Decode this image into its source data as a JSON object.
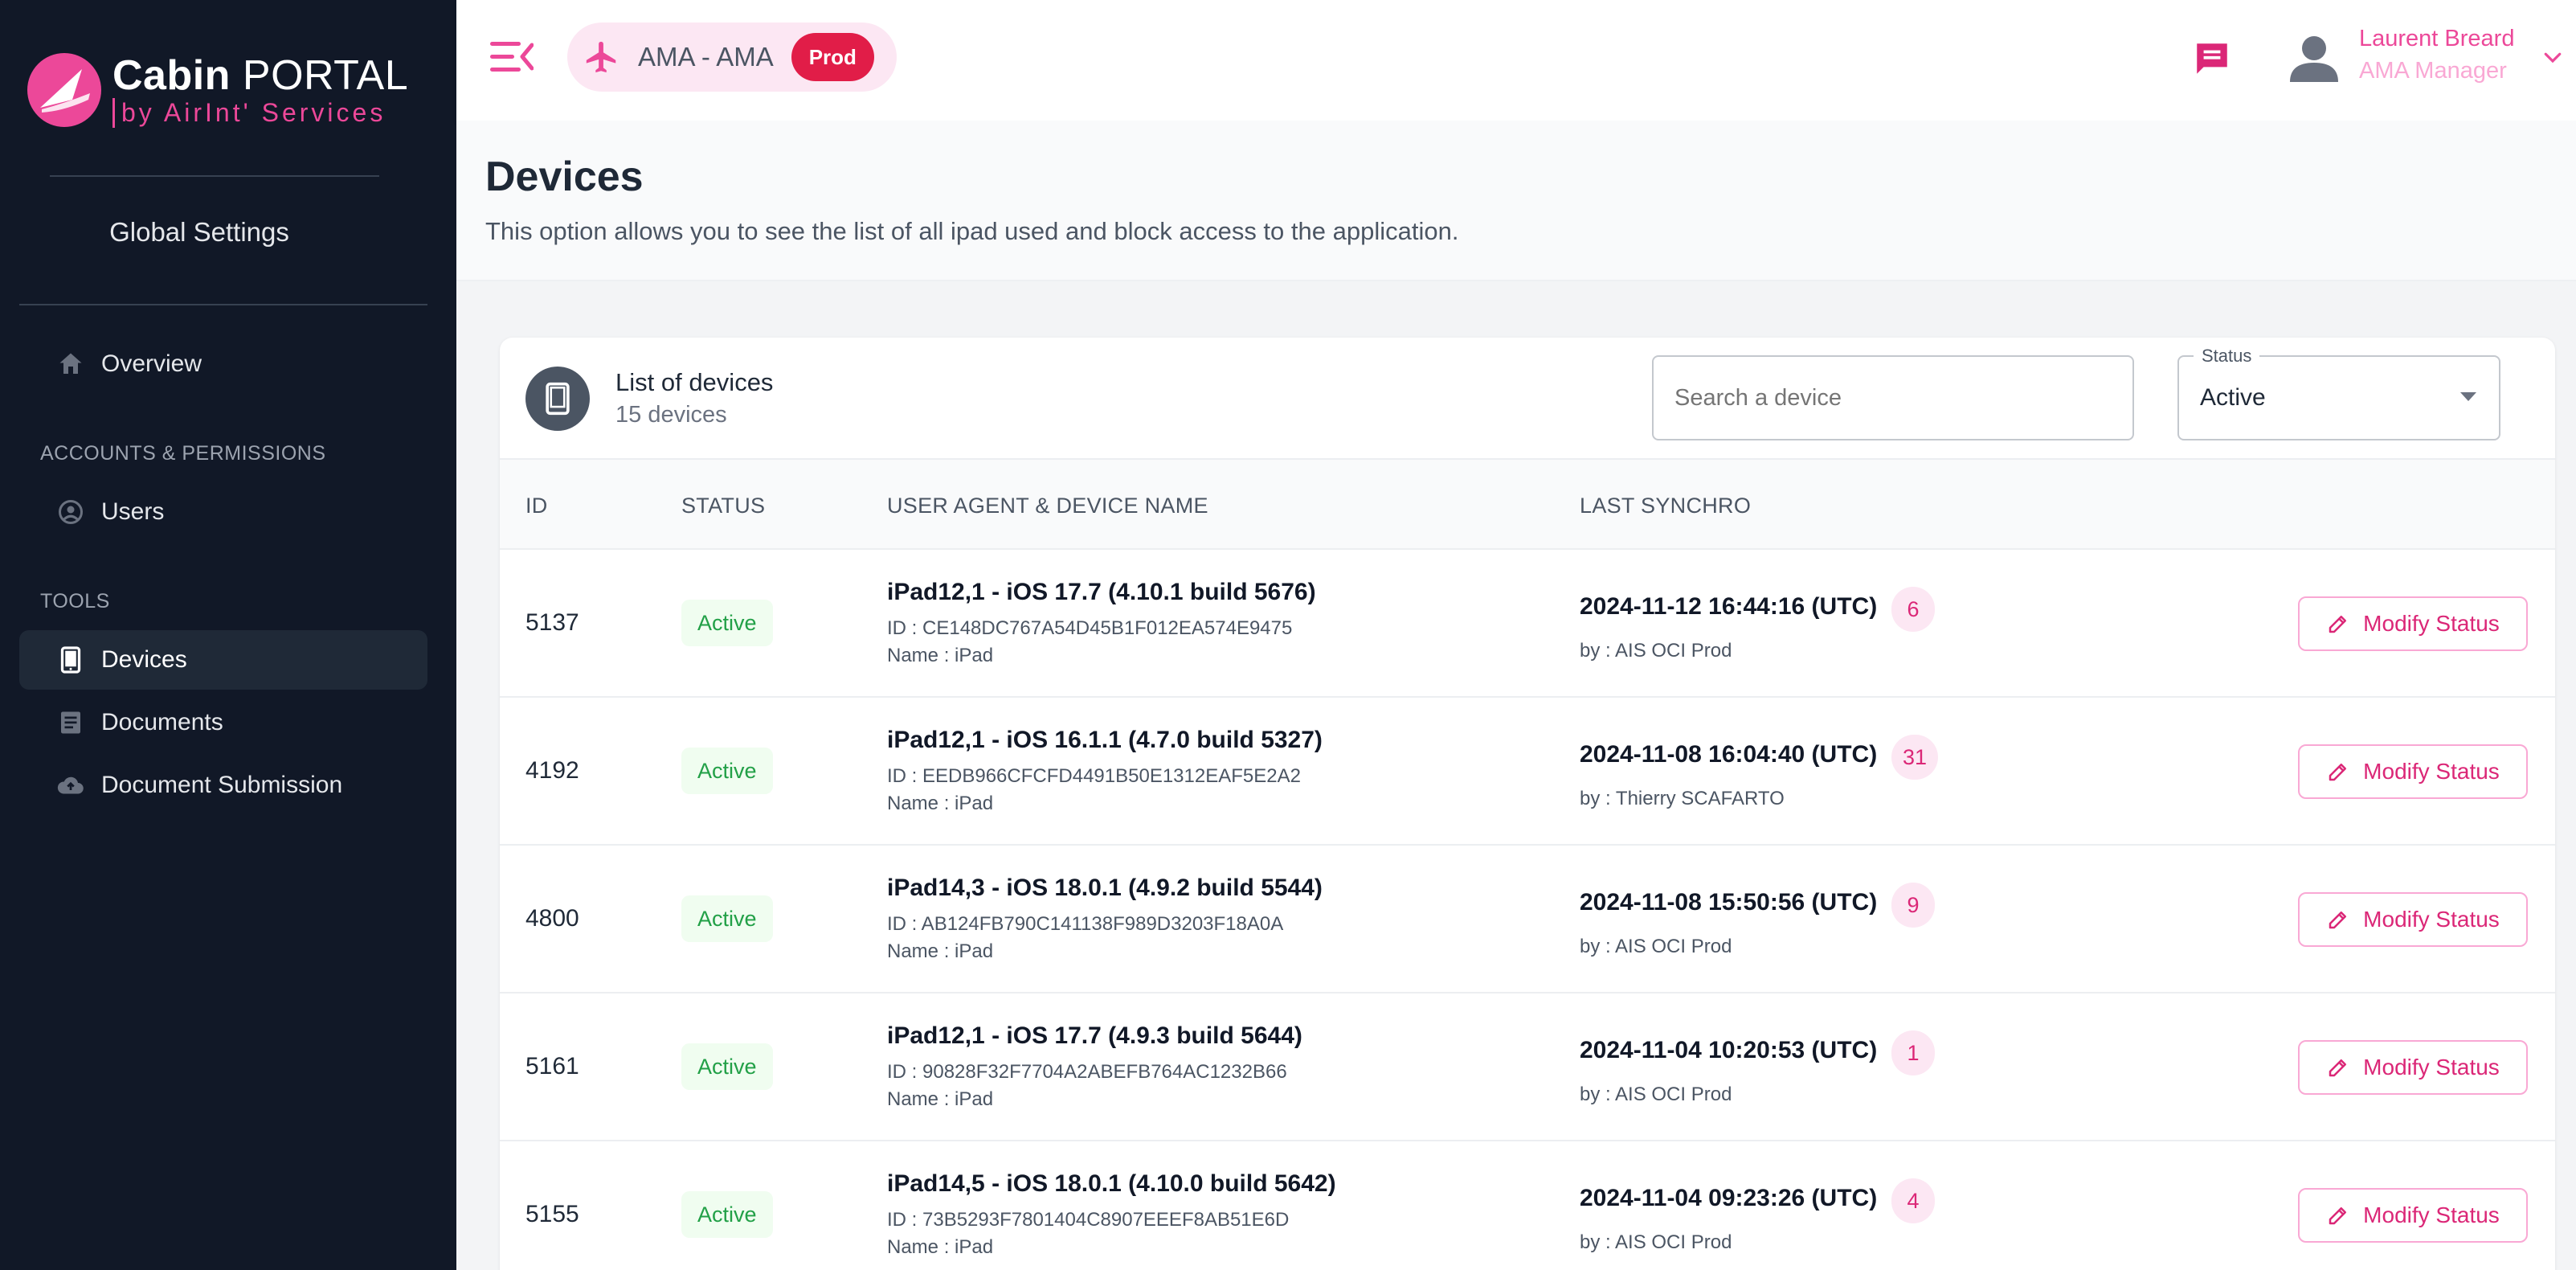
{
  "app": {
    "logo_bold": "Cabin",
    "logo_regular": " PORTAL",
    "logo_sub": "by AirInt' Services"
  },
  "sidebar": {
    "section_header": "Global Settings",
    "items_top": [
      {
        "label": "Overview",
        "icon": "home-icon",
        "active": false
      }
    ],
    "sections": [
      {
        "title": "ACCOUNTS & PERMISSIONS",
        "items": [
          {
            "label": "Users",
            "icon": "user-circle-icon",
            "active": false
          }
        ]
      },
      {
        "title": "TOOLS",
        "items": [
          {
            "label": "Devices",
            "icon": "tablet-icon",
            "active": true
          },
          {
            "label": "Documents",
            "icon": "document-icon",
            "active": false
          },
          {
            "label": "Document Submission",
            "icon": "cloud-upload-icon",
            "active": false
          }
        ]
      }
    ]
  },
  "header": {
    "env_title": "AMA - AMA",
    "env_badge": "Prod",
    "user_name": "Laurent Breard",
    "user_role": "AMA Manager"
  },
  "page": {
    "title": "Devices",
    "description": "This option allows you to see the list of all ipad used and block access to the application."
  },
  "card": {
    "title": "List of devices",
    "subtitle": "15 devices",
    "search_placeholder": "Search a device",
    "status_label": "Status",
    "status_value": "Active"
  },
  "table": {
    "columns": [
      "ID",
      "STATUS",
      "USER AGENT & DEVICE NAME",
      "LAST SYNCHRO"
    ],
    "action_label": "Modify Status",
    "rows": [
      {
        "id": "5137",
        "status": "Active",
        "device": "iPad12,1 - iOS 17.7 (4.10.1 build 5676)",
        "device_id": "ID : CE148DC767A54D45B1F012EA574E9475",
        "device_label": "Name : iPad",
        "sync_date": "2024-11-12 16:44:16 (UTC)",
        "sync_count": "6",
        "sync_by": "by : AIS OCI Prod"
      },
      {
        "id": "4192",
        "status": "Active",
        "device": "iPad12,1 - iOS 16.1.1 (4.7.0 build 5327)",
        "device_id": "ID : EEDB966CFCFD4491B50E1312EAF5E2A2",
        "device_label": "Name : iPad",
        "sync_date": "2024-11-08 16:04:40 (UTC)",
        "sync_count": "31",
        "sync_by": "by : Thierry SCAFARTO"
      },
      {
        "id": "4800",
        "status": "Active",
        "device": "iPad14,3 - iOS 18.0.1 (4.9.2 build 5544)",
        "device_id": "ID : AB124FB790C141138F989D3203F18A0A",
        "device_label": "Name : iPad",
        "sync_date": "2024-11-08 15:50:56 (UTC)",
        "sync_count": "9",
        "sync_by": "by : AIS OCI Prod"
      },
      {
        "id": "5161",
        "status": "Active",
        "device": "iPad12,1 - iOS 17.7 (4.9.3 build 5644)",
        "device_id": "ID : 90828F32F7704A2ABEFB764AC1232B66",
        "device_label": "Name : iPad",
        "sync_date": "2024-11-04 10:20:53 (UTC)",
        "sync_count": "1",
        "sync_by": "by : AIS OCI Prod"
      },
      {
        "id": "5155",
        "status": "Active",
        "device": "iPad14,5 - iOS 18.0.1 (4.10.0 build 5642)",
        "device_id": "ID : 73B5293F7801404C8907EEEF8AB51E6D",
        "device_label": "Name : iPad",
        "sync_date": "2024-11-04 09:23:26 (UTC)",
        "sync_count": "4",
        "sync_by": "by : AIS OCI Prod"
      }
    ]
  },
  "colors": {
    "sidebar_bg": "#111827",
    "accent": "#ec4899",
    "prod_badge": "#e11d48",
    "active_status": "#22a047"
  }
}
